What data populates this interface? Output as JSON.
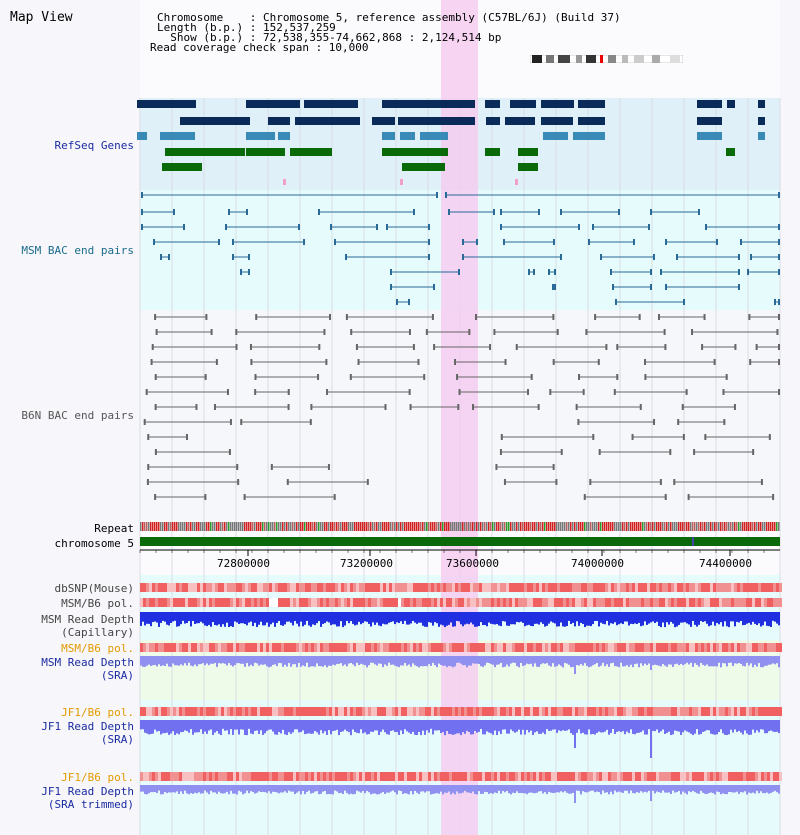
{
  "title": "Map View",
  "info": {
    "row1": "Chromosome    : Chromosome 5, reference assembly (C57BL/6J) (Build 37)",
    "row2": "Length (b.p.) : 152,537,259",
    "row3": "  Show (b.p.) : 72,538,355-74,662,868 : 2,124,514 bp",
    "row4": "Read coverage check span : 10,000"
  },
  "tracks": {
    "refseq": "RefSeq Genes",
    "msm_bac": "MSM BAC end pairs",
    "b6n_bac": "B6N BAC end pairs",
    "repeat": "Repeat",
    "chromosome": "chromosome 5",
    "dbsnp": "dbSNP(Mouse)",
    "msm_b6_pol": "MSM/B6 pol.",
    "msm_depth_cap_1": "MSM Read Depth",
    "msm_depth_cap_2": "(Capillary)",
    "msm_b6_pol_sra": "MSM/B6 pol.",
    "msm_depth_sra_1": "MSM Read Depth",
    "msm_depth_sra_2": "(SRA)",
    "jf1_b6_pol": "JF1/B6 pol.",
    "jf1_depth_1": "JF1 Read Depth",
    "jf1_depth_2": "(SRA)",
    "jf1_b6_pol_2": "JF1/B6 pol.",
    "jf1_trim_1": "JF1 Read Depth",
    "jf1_trim_2": "(SRA trimmed)"
  },
  "axis": {
    "ticks": [
      "72800000",
      "73200000",
      "73600000",
      "74000000",
      "74400000"
    ]
  },
  "colors": {
    "refseq_bg": "#dff0f8",
    "bac_bg": "#e6fbfb",
    "highlight": "#f4cdf0",
    "dark_blue": "#0a2a5a",
    "mid_blue": "#3a8ab8",
    "green": "#0a6a0a",
    "orange_label": "#e39a00",
    "blue_label": "#1a2aa0"
  }
}
